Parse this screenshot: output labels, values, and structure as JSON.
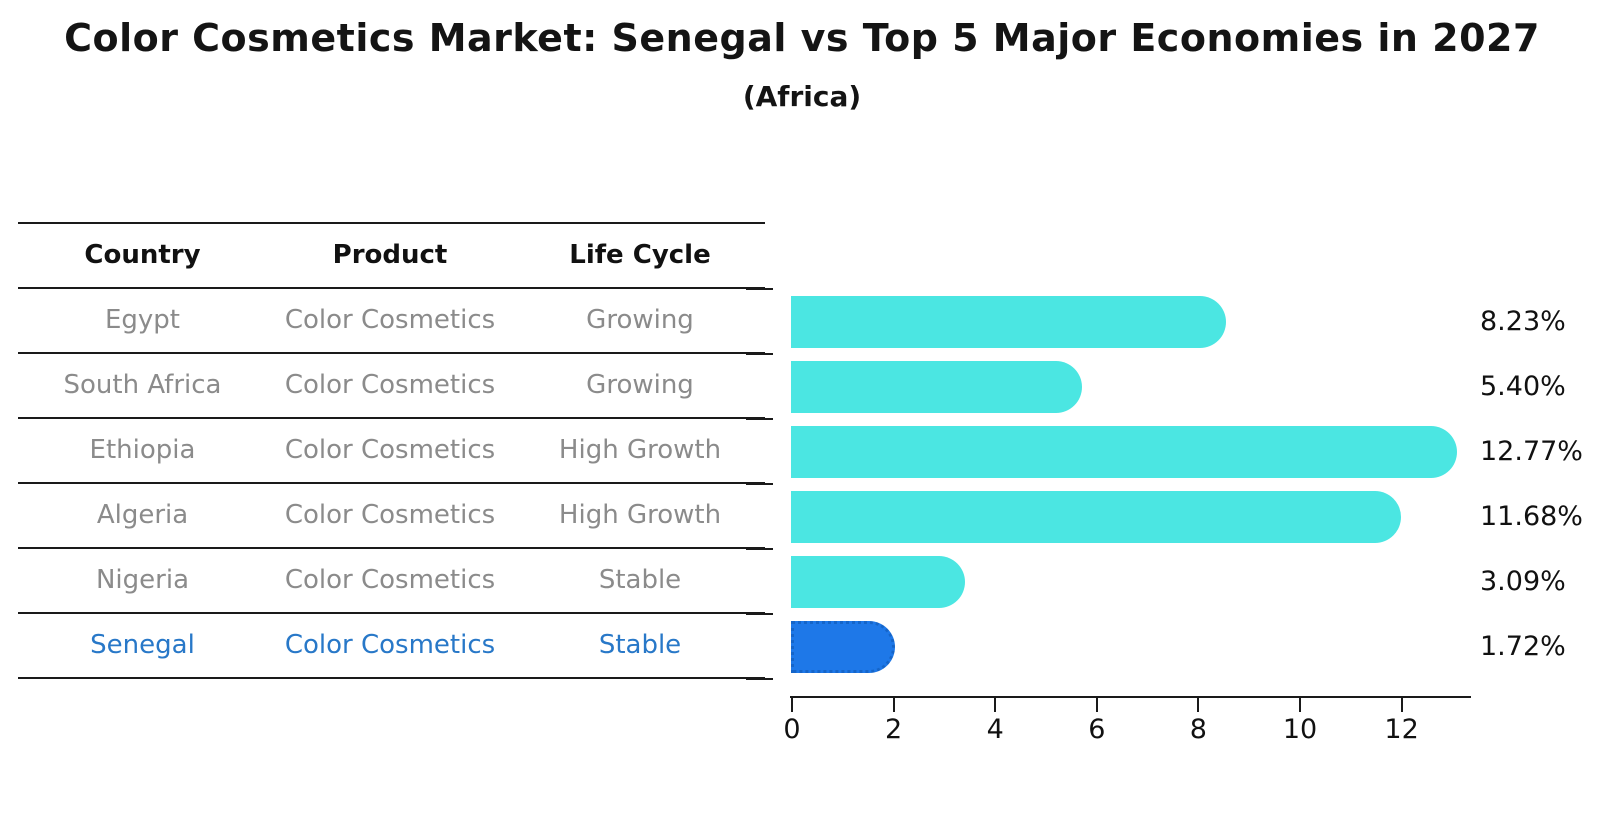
{
  "page": {
    "title": "Color Cosmetics Market: Senegal vs Top 5 Major Economies in 2027",
    "subtitle": "(Africa)"
  },
  "table": {
    "headers": [
      "Country",
      "Product",
      "Life Cycle"
    ],
    "rows": [
      {
        "country": "Egypt",
        "product": "Color Cosmetics",
        "life_cycle": "Growing",
        "highlight": false
      },
      {
        "country": "South Africa",
        "product": "Color Cosmetics",
        "life_cycle": "Growing",
        "highlight": false
      },
      {
        "country": "Ethiopia",
        "product": "Color Cosmetics",
        "life_cycle": "High Growth",
        "highlight": false
      },
      {
        "country": "Algeria",
        "product": "Color Cosmetics",
        "life_cycle": "High Growth",
        "highlight": false
      },
      {
        "country": "Nigeria",
        "product": "Color Cosmetics",
        "life_cycle": "Stable",
        "highlight": false
      },
      {
        "country": "Senegal",
        "product": "Color Cosmetics",
        "life_cycle": "Stable",
        "highlight": true
      }
    ]
  },
  "chart_data": {
    "type": "bar",
    "orientation": "horizontal",
    "title": "Color Cosmetics Market: Senegal vs Top 5 Major Economies in 2027",
    "subtitle": "(Africa)",
    "categories": [
      "Egypt",
      "South Africa",
      "Ethiopia",
      "Algeria",
      "Nigeria",
      "Senegal"
    ],
    "values": [
      8.23,
      5.4,
      12.77,
      11.68,
      3.09,
      1.72
    ],
    "value_labels": [
      "8.23%",
      "5.40%",
      "12.77%",
      "11.68%",
      "3.09%",
      "1.72%"
    ],
    "x_ticks": [
      0,
      2,
      4,
      6,
      8,
      10,
      12
    ],
    "xlim": [
      0,
      13.4
    ],
    "grid": false,
    "legend": "none",
    "highlight_index": 5
  },
  "colors": {
    "bar": "#4be6e2",
    "highlight_bar": "#1e78e8",
    "highlight_text": "#2878c8",
    "row_text": "#8b8b8b",
    "axis": "#1a1a1a",
    "label_text": "#111111"
  }
}
